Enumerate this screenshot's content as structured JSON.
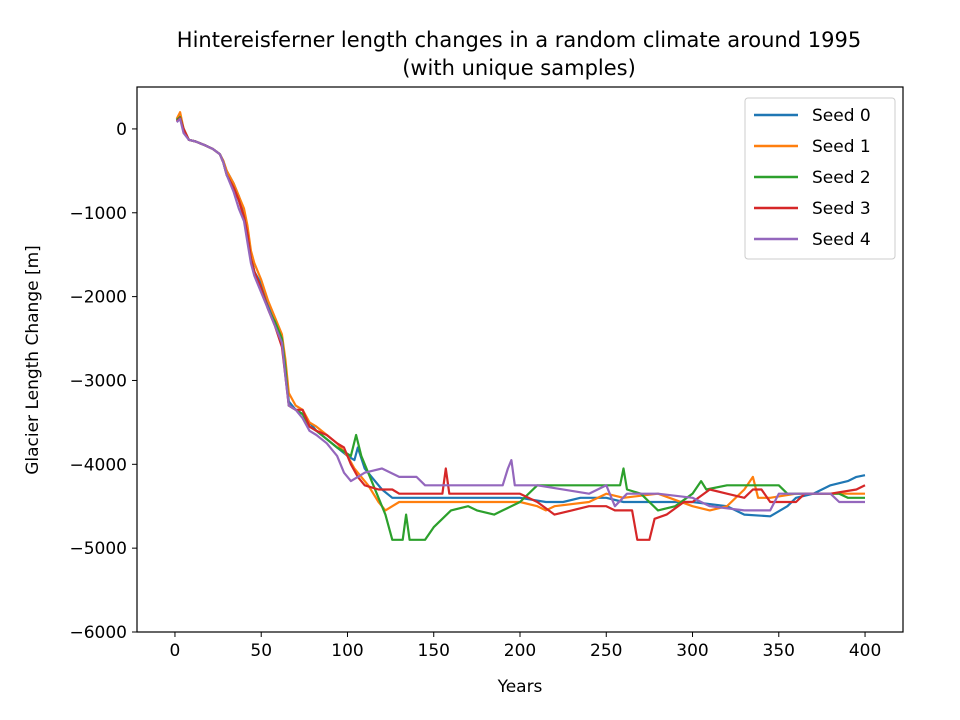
{
  "chart_data": {
    "type": "line",
    "title": "Hintereisferner length changes in a random climate around 1995",
    "subtitle": "(with unique samples)",
    "xlabel": "Years",
    "ylabel": "Glacier Length Change [m]",
    "xlim": [
      -22,
      422
    ],
    "ylim": [
      -6000,
      500
    ],
    "xticks": [
      0,
      50,
      100,
      150,
      200,
      250,
      300,
      350,
      400
    ],
    "yticks": [
      -6000,
      -5000,
      -4000,
      -3000,
      -2000,
      -1000,
      0
    ],
    "grid": false,
    "legend_position": "top-right",
    "series": [
      {
        "name": "Seed 0",
        "color": "#1f77b4",
        "points": [
          [
            1,
            100
          ],
          [
            3,
            150
          ],
          [
            5,
            0
          ],
          [
            8,
            -130
          ],
          [
            12,
            -150
          ],
          [
            18,
            -200
          ],
          [
            22,
            -240
          ],
          [
            26,
            -300
          ],
          [
            28,
            -380
          ],
          [
            30,
            -500
          ],
          [
            34,
            -650
          ],
          [
            37,
            -800
          ],
          [
            40,
            -1000
          ],
          [
            42,
            -1200
          ],
          [
            44,
            -1500
          ],
          [
            46,
            -1700
          ],
          [
            50,
            -1850
          ],
          [
            54,
            -2100
          ],
          [
            58,
            -2300
          ],
          [
            62,
            -2550
          ],
          [
            64,
            -2900
          ],
          [
            66,
            -3250
          ],
          [
            70,
            -3350
          ],
          [
            74,
            -3400
          ],
          [
            78,
            -3500
          ],
          [
            82,
            -3600
          ],
          [
            88,
            -3700
          ],
          [
            94,
            -3800
          ],
          [
            100,
            -3900
          ],
          [
            104,
            -3950
          ],
          [
            106,
            -3800
          ],
          [
            110,
            -4050
          ],
          [
            114,
            -4150
          ],
          [
            120,
            -4300
          ],
          [
            126,
            -4400
          ],
          [
            135,
            -4400
          ],
          [
            150,
            -4400
          ],
          [
            180,
            -4400
          ],
          [
            200,
            -4400
          ],
          [
            215,
            -4450
          ],
          [
            225,
            -4450
          ],
          [
            235,
            -4400
          ],
          [
            250,
            -4400
          ],
          [
            260,
            -4450
          ],
          [
            280,
            -4450
          ],
          [
            300,
            -4450
          ],
          [
            320,
            -4500
          ],
          [
            330,
            -4600
          ],
          [
            345,
            -4620
          ],
          [
            355,
            -4500
          ],
          [
            360,
            -4400
          ],
          [
            370,
            -4350
          ],
          [
            380,
            -4250
          ],
          [
            390,
            -4200
          ],
          [
            395,
            -4150
          ],
          [
            400,
            -4130
          ]
        ]
      },
      {
        "name": "Seed 1",
        "color": "#ff7f0e",
        "points": [
          [
            1,
            120
          ],
          [
            3,
            200
          ],
          [
            5,
            0
          ],
          [
            8,
            -130
          ],
          [
            12,
            -150
          ],
          [
            18,
            -200
          ],
          [
            22,
            -240
          ],
          [
            26,
            -300
          ],
          [
            28,
            -380
          ],
          [
            30,
            -500
          ],
          [
            34,
            -650
          ],
          [
            37,
            -800
          ],
          [
            40,
            -950
          ],
          [
            42,
            -1150
          ],
          [
            44,
            -1450
          ],
          [
            46,
            -1600
          ],
          [
            50,
            -1800
          ],
          [
            54,
            -2050
          ],
          [
            58,
            -2250
          ],
          [
            62,
            -2450
          ],
          [
            64,
            -2750
          ],
          [
            66,
            -3150
          ],
          [
            70,
            -3300
          ],
          [
            74,
            -3350
          ],
          [
            78,
            -3500
          ],
          [
            82,
            -3550
          ],
          [
            88,
            -3650
          ],
          [
            94,
            -3750
          ],
          [
            100,
            -3900
          ],
          [
            104,
            -4050
          ],
          [
            108,
            -4150
          ],
          [
            112,
            -4250
          ],
          [
            118,
            -4450
          ],
          [
            122,
            -4550
          ],
          [
            126,
            -4500
          ],
          [
            130,
            -4450
          ],
          [
            150,
            -4450
          ],
          [
            180,
            -4450
          ],
          [
            200,
            -4450
          ],
          [
            210,
            -4500
          ],
          [
            215,
            -4550
          ],
          [
            220,
            -4500
          ],
          [
            240,
            -4450
          ],
          [
            250,
            -4350
          ],
          [
            260,
            -4400
          ],
          [
            280,
            -4350
          ],
          [
            300,
            -4500
          ],
          [
            310,
            -4550
          ],
          [
            320,
            -4500
          ],
          [
            330,
            -4300
          ],
          [
            335,
            -4150
          ],
          [
            338,
            -4400
          ],
          [
            345,
            -4400
          ],
          [
            360,
            -4350
          ],
          [
            380,
            -4350
          ],
          [
            395,
            -4350
          ],
          [
            400,
            -4350
          ]
        ]
      },
      {
        "name": "Seed 2",
        "color": "#2ca02c",
        "points": [
          [
            1,
            110
          ],
          [
            3,
            140
          ],
          [
            5,
            0
          ],
          [
            8,
            -130
          ],
          [
            12,
            -150
          ],
          [
            18,
            -200
          ],
          [
            22,
            -240
          ],
          [
            26,
            -300
          ],
          [
            28,
            -400
          ],
          [
            30,
            -550
          ],
          [
            34,
            -700
          ],
          [
            37,
            -850
          ],
          [
            40,
            -1050
          ],
          [
            42,
            -1250
          ],
          [
            44,
            -1550
          ],
          [
            46,
            -1700
          ],
          [
            50,
            -1900
          ],
          [
            54,
            -2150
          ],
          [
            58,
            -2300
          ],
          [
            62,
            -2500
          ],
          [
            64,
            -2850
          ],
          [
            66,
            -3300
          ],
          [
            70,
            -3350
          ],
          [
            74,
            -3400
          ],
          [
            78,
            -3550
          ],
          [
            82,
            -3600
          ],
          [
            88,
            -3700
          ],
          [
            94,
            -3800
          ],
          [
            98,
            -3850
          ],
          [
            102,
            -3900
          ],
          [
            105,
            -3650
          ],
          [
            108,
            -3900
          ],
          [
            112,
            -4100
          ],
          [
            118,
            -4400
          ],
          [
            122,
            -4600
          ],
          [
            126,
            -4900
          ],
          [
            132,
            -4900
          ],
          [
            134,
            -4600
          ],
          [
            136,
            -4900
          ],
          [
            145,
            -4900
          ],
          [
            150,
            -4750
          ],
          [
            160,
            -4550
          ],
          [
            170,
            -4500
          ],
          [
            175,
            -4550
          ],
          [
            185,
            -4600
          ],
          [
            190,
            -4550
          ],
          [
            200,
            -4450
          ],
          [
            210,
            -4250
          ],
          [
            250,
            -4250
          ],
          [
            258,
            -4250
          ],
          [
            260,
            -4050
          ],
          [
            262,
            -4300
          ],
          [
            270,
            -4350
          ],
          [
            280,
            -4550
          ],
          [
            290,
            -4500
          ],
          [
            300,
            -4350
          ],
          [
            305,
            -4200
          ],
          [
            308,
            -4300
          ],
          [
            320,
            -4250
          ],
          [
            350,
            -4250
          ],
          [
            355,
            -4350
          ],
          [
            370,
            -4350
          ],
          [
            385,
            -4350
          ],
          [
            390,
            -4400
          ],
          [
            400,
            -4400
          ]
        ]
      },
      {
        "name": "Seed 3",
        "color": "#d62728",
        "points": [
          [
            1,
            90
          ],
          [
            3,
            130
          ],
          [
            5,
            0
          ],
          [
            8,
            -130
          ],
          [
            12,
            -150
          ],
          [
            18,
            -200
          ],
          [
            22,
            -240
          ],
          [
            26,
            -300
          ],
          [
            28,
            -400
          ],
          [
            30,
            -550
          ],
          [
            34,
            -700
          ],
          [
            37,
            -850
          ],
          [
            40,
            -1050
          ],
          [
            42,
            -1250
          ],
          [
            44,
            -1550
          ],
          [
            46,
            -1700
          ],
          [
            50,
            -1900
          ],
          [
            54,
            -2150
          ],
          [
            58,
            -2350
          ],
          [
            62,
            -2600
          ],
          [
            64,
            -2950
          ],
          [
            66,
            -3300
          ],
          [
            70,
            -3350
          ],
          [
            74,
            -3350
          ],
          [
            78,
            -3550
          ],
          [
            82,
            -3600
          ],
          [
            88,
            -3650
          ],
          [
            94,
            -3750
          ],
          [
            98,
            -3800
          ],
          [
            102,
            -4000
          ],
          [
            106,
            -4150
          ],
          [
            110,
            -4250
          ],
          [
            118,
            -4300
          ],
          [
            126,
            -4300
          ],
          [
            130,
            -4350
          ],
          [
            150,
            -4350
          ],
          [
            155,
            -4350
          ],
          [
            157,
            -4050
          ],
          [
            159,
            -4350
          ],
          [
            180,
            -4350
          ],
          [
            200,
            -4350
          ],
          [
            210,
            -4450
          ],
          [
            220,
            -4600
          ],
          [
            230,
            -4550
          ],
          [
            240,
            -4500
          ],
          [
            250,
            -4500
          ],
          [
            255,
            -4550
          ],
          [
            265,
            -4550
          ],
          [
            268,
            -4900
          ],
          [
            275,
            -4900
          ],
          [
            278,
            -4650
          ],
          [
            285,
            -4600
          ],
          [
            295,
            -4450
          ],
          [
            300,
            -4450
          ],
          [
            310,
            -4300
          ],
          [
            320,
            -4350
          ],
          [
            330,
            -4400
          ],
          [
            335,
            -4300
          ],
          [
            340,
            -4300
          ],
          [
            345,
            -4450
          ],
          [
            360,
            -4450
          ],
          [
            365,
            -4350
          ],
          [
            380,
            -4350
          ],
          [
            395,
            -4300
          ],
          [
            400,
            -4250
          ]
        ]
      },
      {
        "name": "Seed 4",
        "color": "#9467bd",
        "points": [
          [
            1,
            80
          ],
          [
            3,
            120
          ],
          [
            5,
            -50
          ],
          [
            8,
            -130
          ],
          [
            12,
            -150
          ],
          [
            18,
            -200
          ],
          [
            22,
            -240
          ],
          [
            26,
            -300
          ],
          [
            28,
            -400
          ],
          [
            30,
            -550
          ],
          [
            34,
            -750
          ],
          [
            37,
            -950
          ],
          [
            40,
            -1100
          ],
          [
            42,
            -1350
          ],
          [
            44,
            -1600
          ],
          [
            46,
            -1750
          ],
          [
            50,
            -1950
          ],
          [
            54,
            -2150
          ],
          [
            58,
            -2350
          ],
          [
            62,
            -2550
          ],
          [
            64,
            -2950
          ],
          [
            66,
            -3300
          ],
          [
            70,
            -3350
          ],
          [
            74,
            -3450
          ],
          [
            78,
            -3600
          ],
          [
            82,
            -3650
          ],
          [
            88,
            -3750
          ],
          [
            94,
            -3900
          ],
          [
            98,
            -4100
          ],
          [
            102,
            -4200
          ],
          [
            106,
            -4150
          ],
          [
            110,
            -4100
          ],
          [
            120,
            -4050
          ],
          [
            130,
            -4150
          ],
          [
            140,
            -4150
          ],
          [
            145,
            -4250
          ],
          [
            150,
            -4250
          ],
          [
            180,
            -4250
          ],
          [
            190,
            -4250
          ],
          [
            193,
            -4050
          ],
          [
            195,
            -3950
          ],
          [
            197,
            -4250
          ],
          [
            210,
            -4250
          ],
          [
            240,
            -4350
          ],
          [
            250,
            -4250
          ],
          [
            255,
            -4500
          ],
          [
            262,
            -4350
          ],
          [
            280,
            -4350
          ],
          [
            300,
            -4400
          ],
          [
            310,
            -4500
          ],
          [
            330,
            -4550
          ],
          [
            345,
            -4550
          ],
          [
            350,
            -4350
          ],
          [
            380,
            -4350
          ],
          [
            385,
            -4450
          ],
          [
            400,
            -4450
          ]
        ]
      }
    ]
  }
}
